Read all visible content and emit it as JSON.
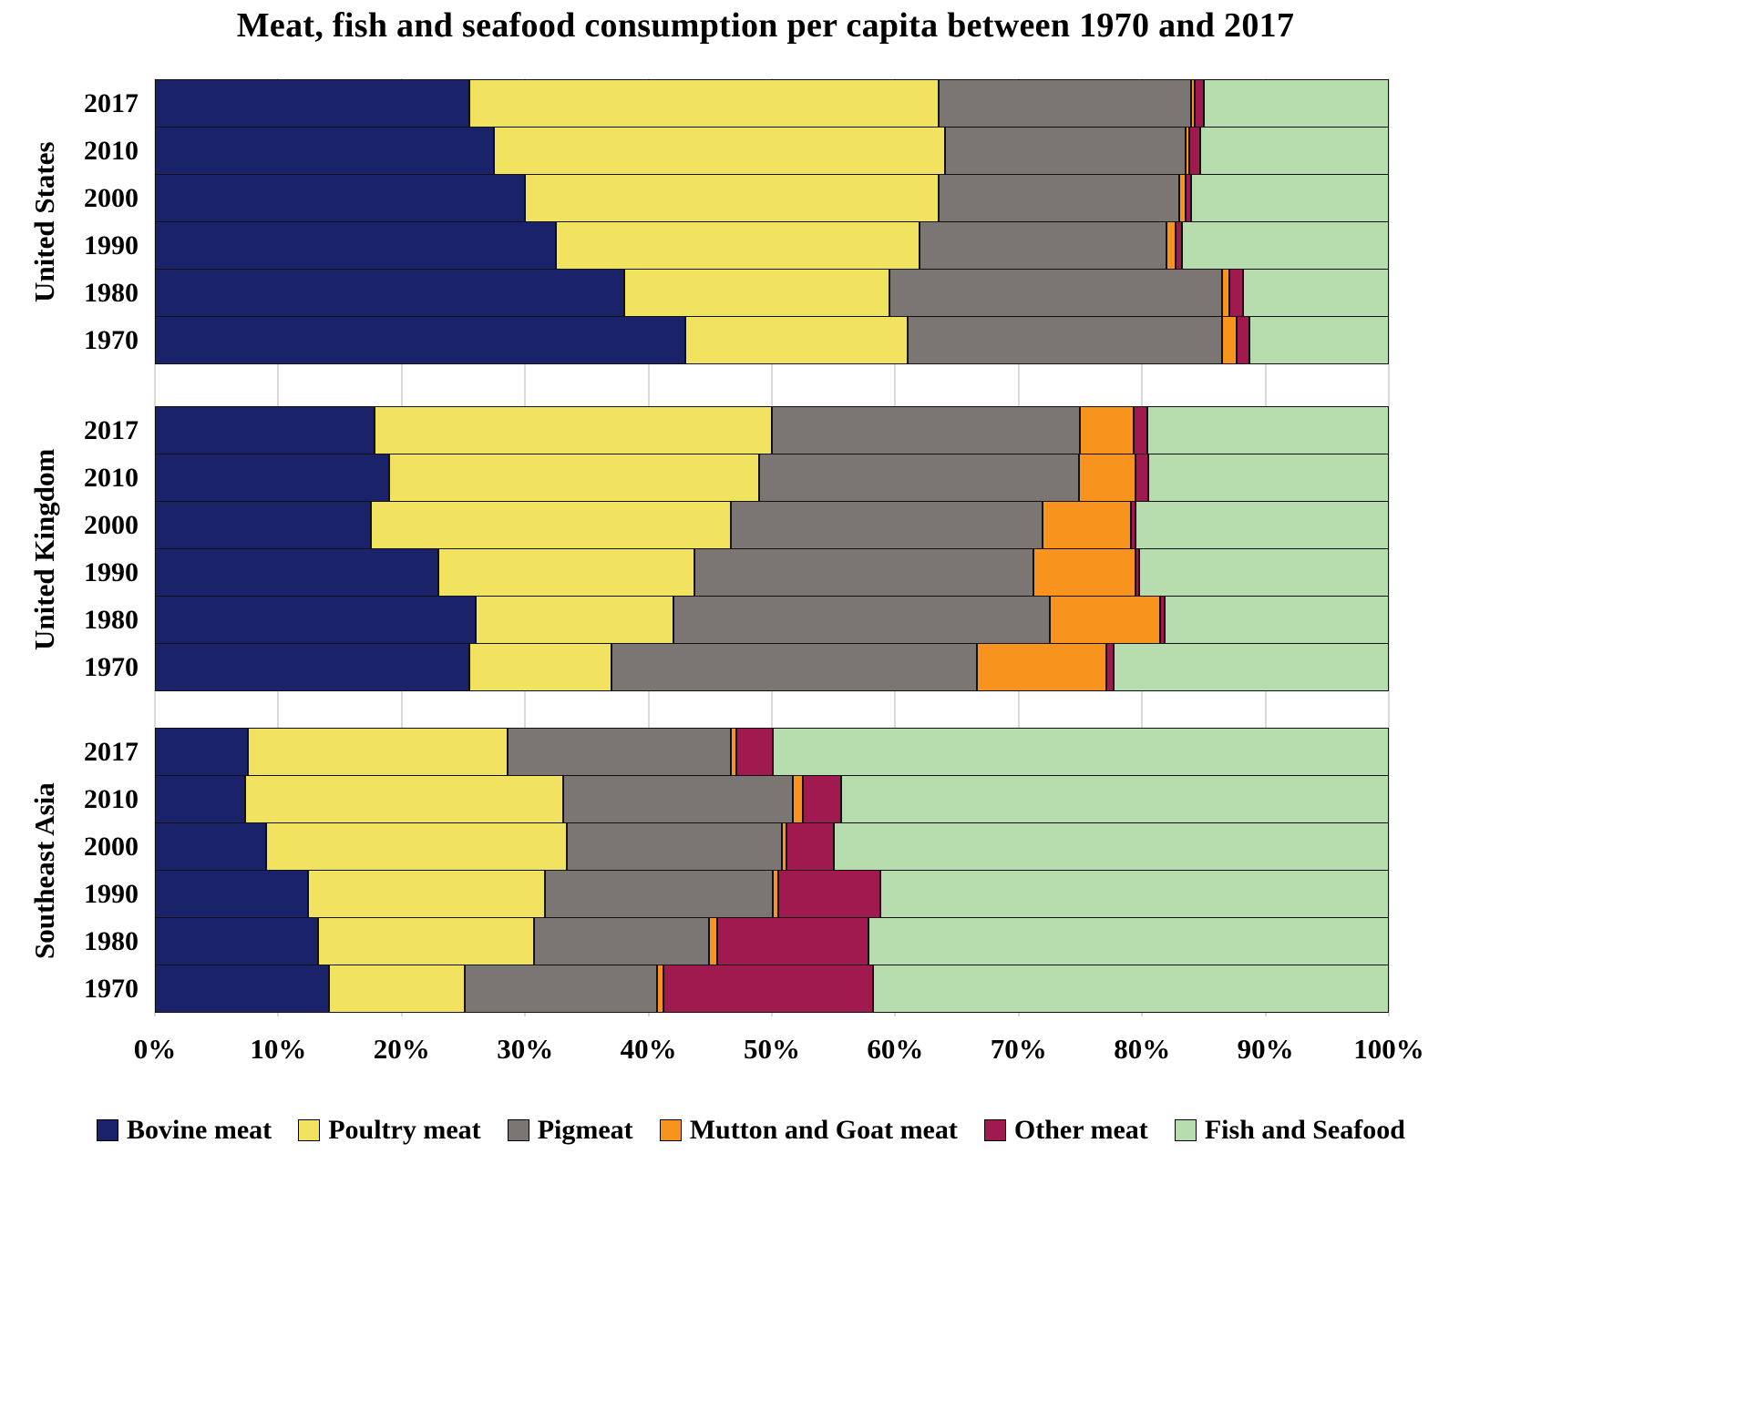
{
  "chart_data": {
    "type": "bar",
    "variant": "horizontal-stacked-100pct",
    "title": "Meat, fish and seafood consumption per capita between 1970 and 2017",
    "unit": "%",
    "xlim": [
      0,
      100
    ],
    "x_tick_labels": [
      "0%",
      "10%",
      "20%",
      "30%",
      "40%",
      "50%",
      "60%",
      "70%",
      "80%",
      "90%",
      "100%"
    ],
    "grid": "vertical",
    "legend_position": "bottom",
    "series": [
      {
        "name": "Bovine meat",
        "color": "#1a2369"
      },
      {
        "name": "Poultry meat",
        "color": "#f1e25f"
      },
      {
        "name": "Pigmeat",
        "color": "#7b7574"
      },
      {
        "name": "Mutton and Goat meat",
        "color": "#f8941d"
      },
      {
        "name": "Other meat",
        "color": "#a01a50"
      },
      {
        "name": "Fish and Seafood",
        "color": "#b7dcae"
      }
    ],
    "groups": [
      {
        "region": "United States",
        "rows": [
          {
            "year": "2017",
            "values": [
              25.5,
              38.0,
              20.5,
              0.3,
              0.7,
              15.0
            ]
          },
          {
            "year": "2010",
            "values": [
              27.5,
              36.5,
              19.5,
              0.3,
              0.9,
              15.3
            ]
          },
          {
            "year": "2000",
            "values": [
              30.0,
              33.5,
              19.5,
              0.5,
              0.5,
              16.0
            ]
          },
          {
            "year": "1990",
            "values": [
              32.5,
              29.5,
              20.0,
              0.7,
              0.5,
              16.8
            ]
          },
          {
            "year": "1980",
            "values": [
              38.0,
              21.5,
              27.0,
              0.6,
              1.1,
              11.8
            ]
          },
          {
            "year": "1970",
            "values": [
              43.0,
              18.0,
              25.5,
              1.2,
              1.0,
              11.3
            ]
          }
        ]
      },
      {
        "region": "United Kingdom",
        "rows": [
          {
            "year": "2017",
            "values": [
              17.8,
              32.2,
              25.0,
              4.3,
              1.1,
              19.6
            ]
          },
          {
            "year": "2010",
            "values": [
              19.0,
              30.0,
              25.9,
              4.6,
              1.0,
              19.5
            ]
          },
          {
            "year": "2000",
            "values": [
              17.5,
              29.2,
              25.2,
              7.2,
              0.4,
              20.5
            ]
          },
          {
            "year": "1990",
            "values": [
              23.0,
              20.7,
              27.5,
              8.3,
              0.3,
              20.2
            ]
          },
          {
            "year": "1980",
            "values": [
              26.0,
              16.0,
              30.5,
              9.0,
              0.3,
              18.2
            ]
          },
          {
            "year": "1970",
            "values": [
              25.5,
              11.5,
              29.6,
              10.5,
              0.6,
              22.3
            ]
          }
        ]
      },
      {
        "region": "Southeast Asia",
        "rows": [
          {
            "year": "2017",
            "values": [
              7.5,
              21.1,
              18.1,
              0.4,
              3.0,
              49.9
            ]
          },
          {
            "year": "2010",
            "values": [
              7.3,
              25.8,
              18.6,
              0.8,
              3.1,
              44.4
            ]
          },
          {
            "year": "2000",
            "values": [
              9.0,
              24.4,
              17.4,
              0.4,
              3.8,
              45.0
            ]
          },
          {
            "year": "1990",
            "values": [
              12.4,
              19.2,
              18.5,
              0.4,
              8.3,
              41.2
            ]
          },
          {
            "year": "1980",
            "values": [
              13.2,
              17.5,
              14.2,
              0.7,
              12.2,
              42.2
            ]
          },
          {
            "year": "1970",
            "values": [
              14.1,
              11.0,
              15.6,
              0.5,
              17.0,
              41.8
            ]
          }
        ]
      }
    ]
  }
}
